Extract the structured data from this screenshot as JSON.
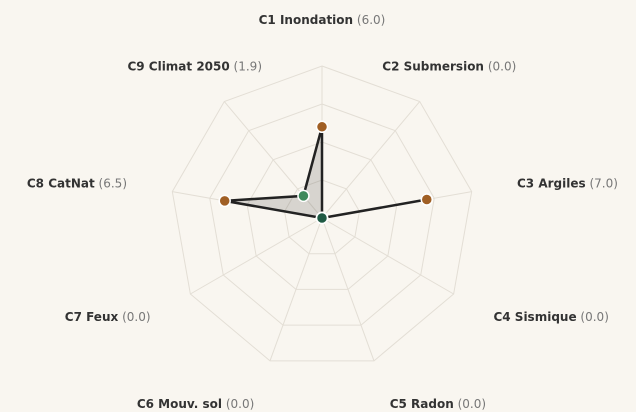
{
  "chart_data": {
    "type": "radar",
    "categories": [
      "C1 Inondation",
      "C2 Submersion",
      "C3 Argiles",
      "C4 Sismique",
      "C5 Radon",
      "C6 Mouv. sol",
      "C7 Feux",
      "C8 CatNat",
      "C9 Climat 2050"
    ],
    "values": [
      6.0,
      0.0,
      7.0,
      0.0,
      0.0,
      0.0,
      0.0,
      6.5,
      1.9
    ],
    "value_labels": [
      "(6.0)",
      "(0.0)",
      "(7.0)",
      "(0.0)",
      "(0.0)",
      "(0.0)",
      "(0.0)",
      "(6.5)",
      "(1.9)"
    ],
    "point_colors": [
      "#a05f24",
      "#1f5a44",
      "#a05f24",
      "#1f5a44",
      "#1f5a44",
      "#1f5a44",
      "#1f5a44",
      "#a05f24",
      "#3f8a5c"
    ],
    "rlim": [
      0,
      10
    ],
    "rticks": [
      2.5,
      5,
      7.5,
      10
    ],
    "grid": true
  }
}
